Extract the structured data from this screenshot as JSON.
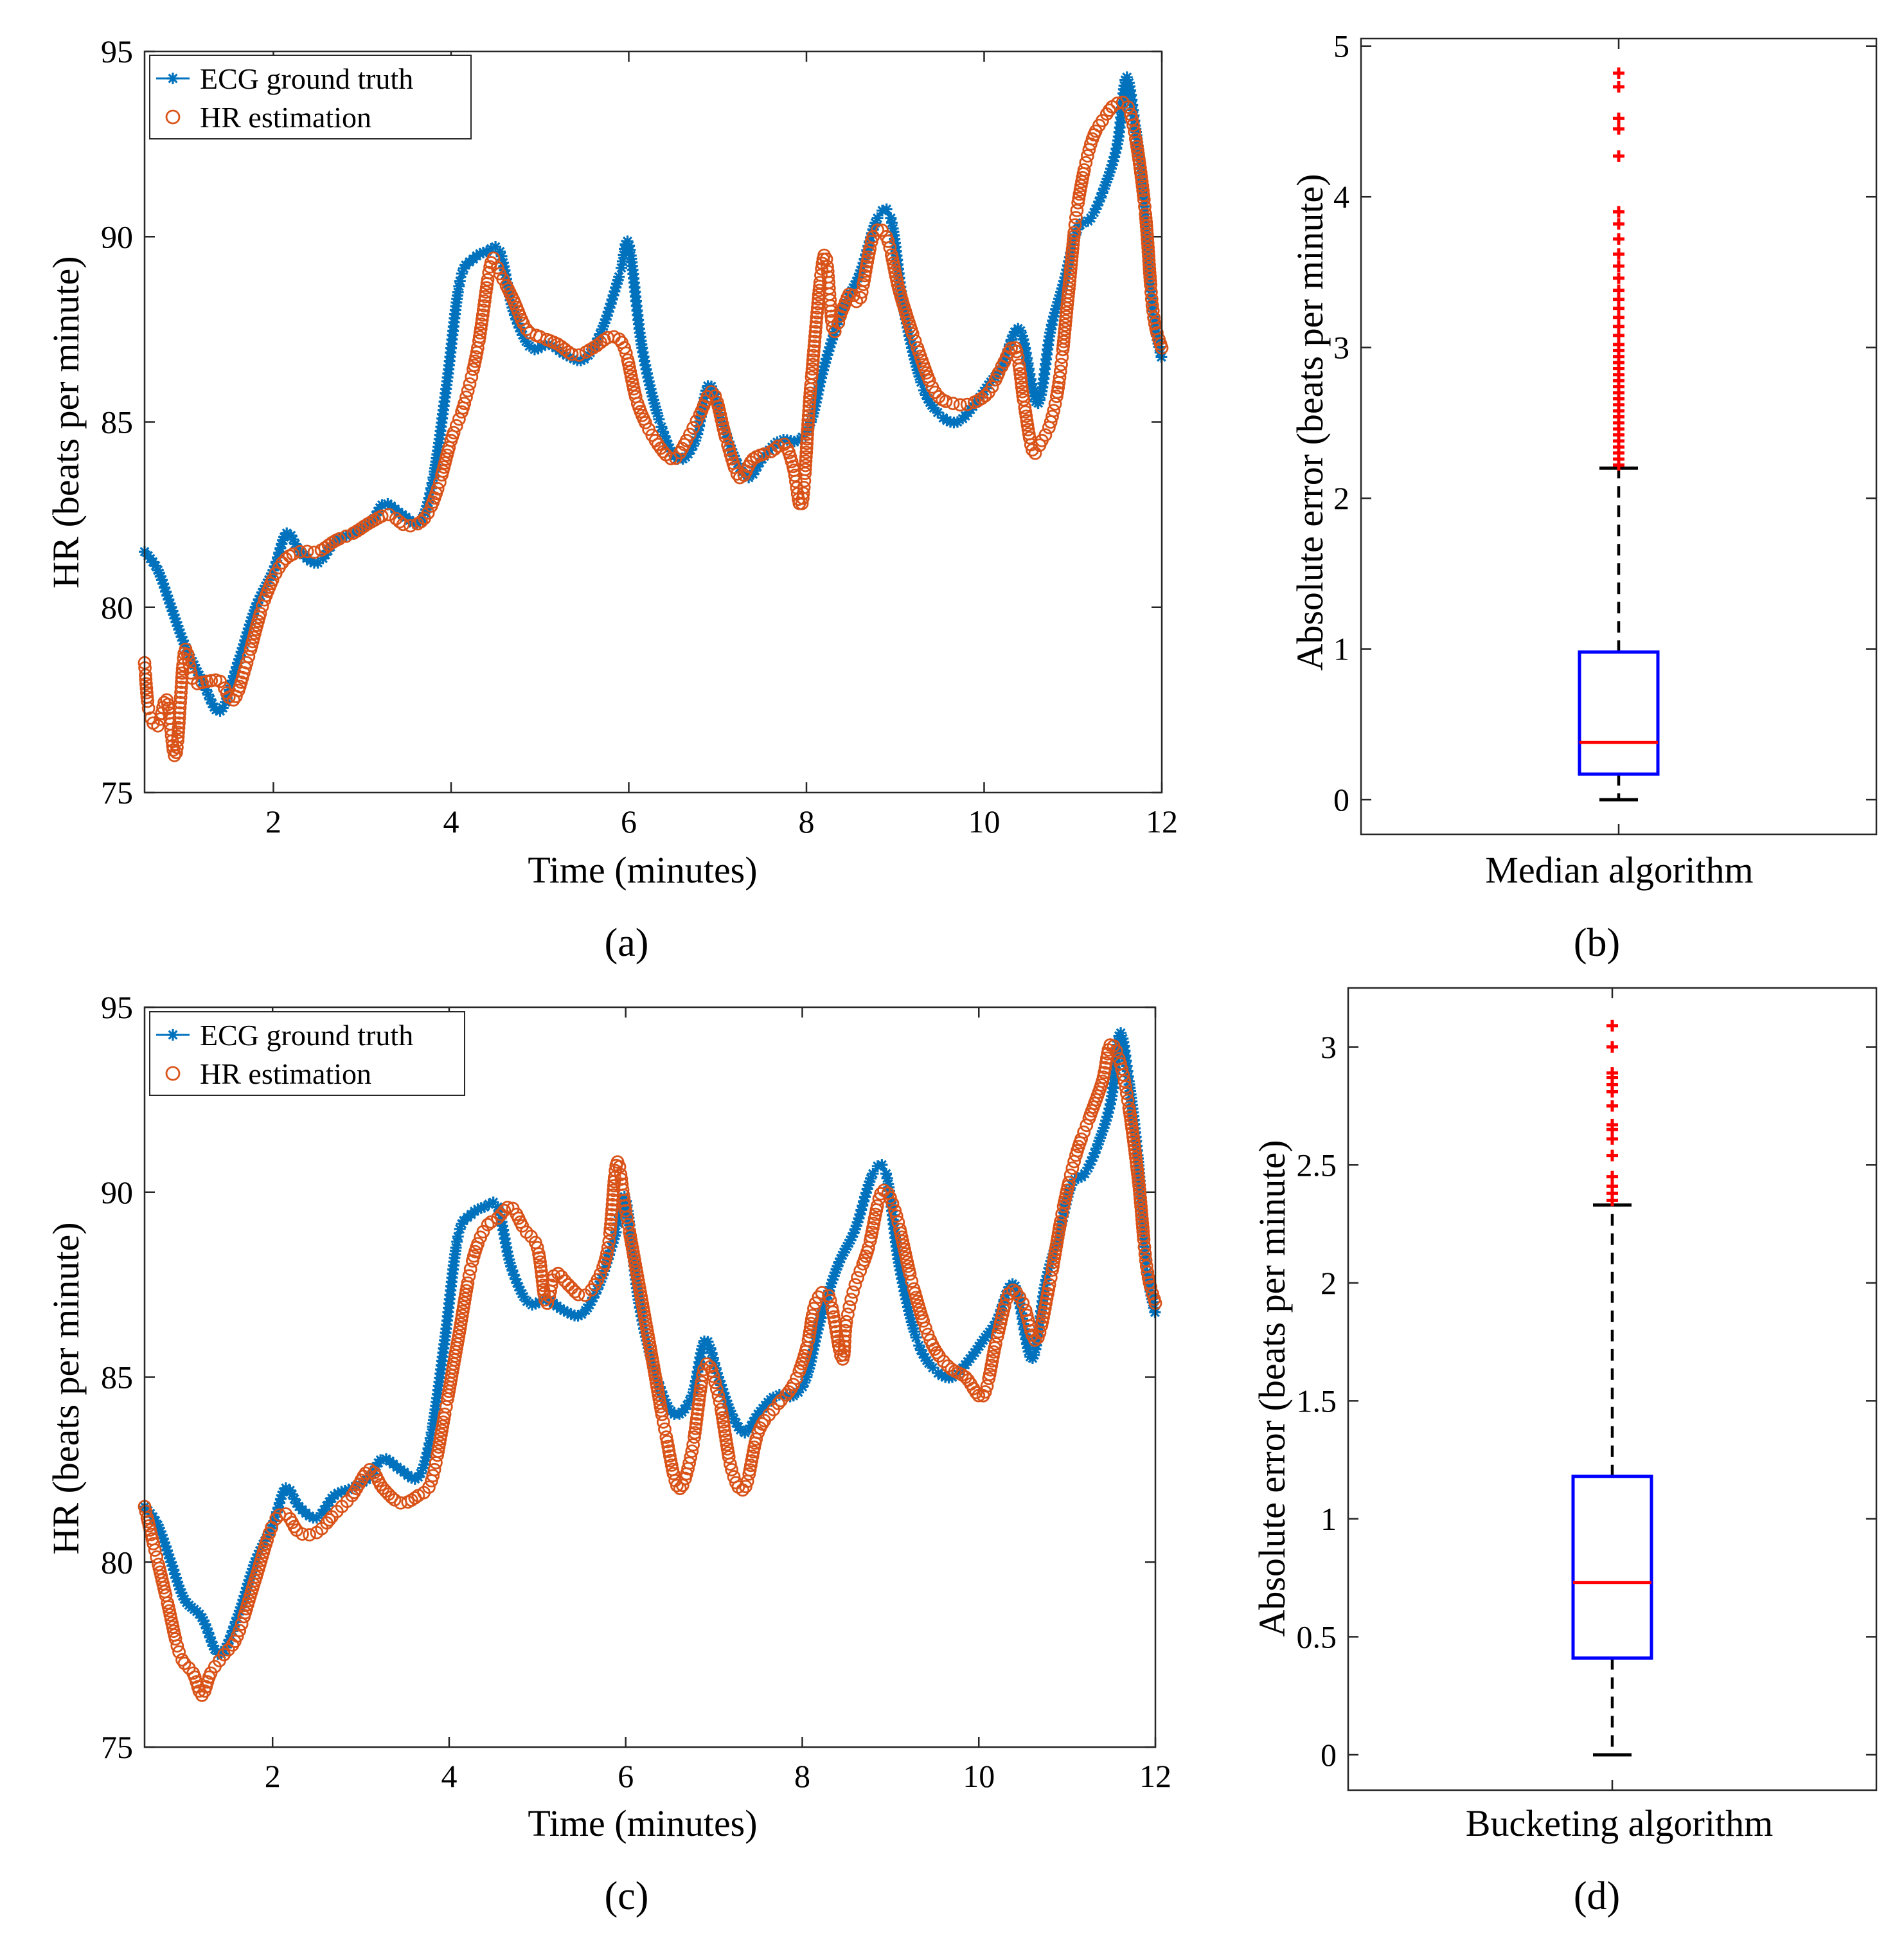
{
  "figure": {
    "colors": {
      "ecg": "#0072BD",
      "est": "#D95319",
      "box": "#0000FF",
      "median": "#FF0000",
      "outlier": "#FF0000",
      "whisker": "#000000"
    }
  },
  "chart_data": [
    {
      "id": "a",
      "type": "line",
      "panel_label": "(a)",
      "xlabel": "Time (minutes)",
      "ylabel": "HR (beats per minute)",
      "xlim": [
        0.55,
        12
      ],
      "ylim": [
        75,
        95
      ],
      "xticks": [
        2,
        4,
        6,
        8,
        10,
        12
      ],
      "yticks": [
        75,
        80,
        85,
        90,
        95
      ],
      "legend": [
        "ECG ground truth",
        "HR estimation"
      ],
      "legend_position": "top-left",
      "series": [
        {
          "name": "ECG ground truth",
          "marker": "asterisk",
          "x": [
            0.55,
            0.7,
            0.85,
            1.0,
            1.2,
            1.4,
            1.6,
            1.8,
            2.0,
            2.15,
            2.3,
            2.5,
            2.7,
            2.9,
            3.1,
            3.25,
            3.45,
            3.65,
            3.8,
            3.95,
            4.1,
            4.25,
            4.4,
            4.55,
            4.7,
            4.9,
            5.1,
            5.3,
            5.5,
            5.7,
            5.9,
            6.0,
            6.15,
            6.35,
            6.55,
            6.75,
            6.9,
            7.05,
            7.2,
            7.35,
            7.5,
            7.7,
            7.9,
            8.05,
            8.2,
            8.4,
            8.6,
            8.8,
            8.95,
            9.1,
            9.3,
            9.5,
            9.7,
            9.9,
            10.05,
            10.2,
            10.4,
            10.6,
            10.75,
            10.9,
            11.05,
            11.2,
            11.35,
            11.5,
            11.6,
            11.7,
            11.8,
            11.9,
            12.0
          ],
          "y": [
            81.5,
            81.0,
            80.0,
            79.0,
            78.0,
            77.2,
            78.5,
            80.0,
            81.0,
            82.0,
            81.5,
            81.2,
            81.8,
            82.0,
            82.3,
            82.8,
            82.5,
            82.3,
            83.5,
            86.0,
            88.8,
            89.4,
            89.6,
            89.6,
            88.0,
            87.0,
            87.1,
            86.8,
            86.7,
            87.5,
            89.0,
            89.8,
            87.0,
            85.0,
            84.0,
            84.5,
            86.0,
            85.0,
            84.0,
            83.5,
            84.0,
            84.5,
            84.5,
            85.0,
            86.5,
            88.0,
            89.0,
            90.5,
            90.5,
            88.0,
            86.0,
            85.2,
            85.0,
            85.5,
            86.0,
            86.5,
            87.5,
            85.5,
            87.5,
            88.8,
            90.2,
            90.5,
            91.3,
            92.5,
            94.3,
            93.0,
            91.0,
            88.0,
            86.7
          ]
        },
        {
          "name": "HR estimation",
          "marker": "circle",
          "x": [
            0.55,
            0.6,
            0.7,
            0.8,
            0.9,
            1.0,
            1.1,
            1.25,
            1.4,
            1.55,
            1.7,
            1.9,
            2.1,
            2.3,
            2.5,
            2.7,
            2.9,
            3.1,
            3.3,
            3.5,
            3.7,
            3.85,
            4.0,
            4.15,
            4.3,
            4.45,
            4.55,
            4.7,
            4.85,
            5.0,
            5.2,
            5.4,
            5.6,
            5.8,
            5.95,
            6.1,
            6.3,
            6.5,
            6.65,
            6.8,
            6.95,
            7.1,
            7.25,
            7.4,
            7.6,
            7.75,
            7.85,
            7.95,
            8.05,
            8.2,
            8.3,
            8.4,
            8.5,
            8.6,
            8.75,
            8.9,
            9.05,
            9.25,
            9.45,
            9.65,
            9.85,
            10.05,
            10.2,
            10.35,
            10.45,
            10.55,
            10.65,
            10.75,
            10.85,
            10.95,
            11.05,
            11.2,
            11.35,
            11.5,
            11.65,
            11.8,
            11.9,
            12.0
          ],
          "y": [
            78.5,
            77.2,
            76.8,
            77.5,
            76.0,
            78.8,
            78.0,
            78.0,
            78.0,
            77.5,
            78.5,
            80.2,
            81.2,
            81.5,
            81.5,
            81.8,
            82.0,
            82.3,
            82.5,
            82.2,
            82.4,
            83.2,
            84.5,
            85.5,
            87.0,
            89.3,
            89.0,
            88.3,
            87.5,
            87.3,
            87.1,
            86.8,
            87.0,
            87.3,
            87.0,
            85.5,
            84.5,
            84.0,
            84.5,
            85.2,
            85.8,
            84.5,
            83.5,
            84.0,
            84.2,
            84.4,
            83.8,
            82.8,
            86.0,
            89.5,
            87.5,
            88.0,
            88.5,
            88.3,
            90.0,
            90.0,
            88.5,
            87.0,
            85.8,
            85.5,
            85.5,
            85.8,
            86.5,
            87.0,
            85.5,
            84.2,
            84.5,
            85.0,
            86.2,
            88.5,
            90.8,
            92.5,
            93.2,
            93.6,
            93.3,
            91.0,
            88.0,
            87.0
          ]
        }
      ]
    },
    {
      "id": "b",
      "type": "box",
      "panel_label": "(b)",
      "xlabel": "Median algorithm",
      "ylabel": "Absolute error (beats per minute)",
      "ylim": [
        -0.23,
        5.05
      ],
      "yticks": [
        0,
        1,
        2,
        3,
        4,
        5
      ],
      "box": {
        "min": 0,
        "q1": 0.17,
        "median": 0.38,
        "q3": 0.98,
        "whisker_high": 2.2
      },
      "outliers": [
        2.22,
        2.26,
        2.3,
        2.34,
        2.38,
        2.42,
        2.46,
        2.5,
        2.54,
        2.58,
        2.62,
        2.66,
        2.7,
        2.74,
        2.78,
        2.82,
        2.86,
        2.9,
        2.94,
        2.98,
        3.02,
        3.08,
        3.14,
        3.2,
        3.26,
        3.32,
        3.38,
        3.46,
        3.54,
        3.62,
        3.72,
        3.82,
        3.9,
        4.27,
        4.45,
        4.52,
        4.73,
        4.82
      ]
    },
    {
      "id": "c",
      "type": "line",
      "panel_label": "(c)",
      "xlabel": "Time (minutes)",
      "ylabel": "HR (beats per minute)",
      "xlim": [
        0.55,
        12
      ],
      "ylim": [
        75,
        95
      ],
      "xticks": [
        2,
        4,
        6,
        8,
        10,
        12
      ],
      "yticks": [
        75,
        80,
        85,
        90,
        95
      ],
      "legend": [
        "ECG ground truth",
        "HR estimation"
      ],
      "legend_position": "top-left",
      "series": [
        {
          "name": "ECG ground truth",
          "marker": "asterisk",
          "x": [
            0.55,
            0.7,
            0.85,
            1.0,
            1.2,
            1.4,
            1.6,
            1.8,
            2.0,
            2.15,
            2.3,
            2.5,
            2.7,
            2.9,
            3.1,
            3.25,
            3.45,
            3.65,
            3.8,
            3.95,
            4.1,
            4.25,
            4.4,
            4.55,
            4.7,
            4.9,
            5.1,
            5.3,
            5.5,
            5.7,
            5.9,
            6.0,
            6.15,
            6.35,
            6.55,
            6.75,
            6.9,
            7.05,
            7.2,
            7.35,
            7.5,
            7.7,
            7.9,
            8.05,
            8.2,
            8.4,
            8.6,
            8.8,
            8.95,
            9.1,
            9.3,
            9.5,
            9.7,
            9.9,
            10.05,
            10.2,
            10.4,
            10.6,
            10.75,
            10.9,
            11.05,
            11.2,
            11.35,
            11.5,
            11.6,
            11.7,
            11.8,
            11.9,
            12.0
          ],
          "y": [
            81.5,
            81.0,
            80.0,
            79.0,
            78.5,
            77.5,
            78.5,
            80.0,
            81.0,
            82.0,
            81.5,
            81.2,
            81.8,
            82.0,
            82.3,
            82.8,
            82.5,
            82.3,
            83.5,
            86.0,
            88.8,
            89.4,
            89.6,
            89.6,
            88.0,
            87.0,
            87.1,
            86.8,
            86.7,
            87.5,
            89.0,
            89.8,
            87.0,
            85.0,
            84.0,
            84.5,
            86.0,
            85.0,
            84.0,
            83.5,
            84.0,
            84.5,
            84.5,
            85.0,
            86.5,
            88.0,
            89.0,
            90.5,
            90.5,
            88.0,
            86.0,
            85.2,
            85.0,
            85.5,
            86.0,
            86.5,
            87.5,
            85.5,
            87.5,
            88.8,
            90.2,
            90.5,
            91.3,
            92.5,
            94.3,
            93.0,
            91.0,
            88.0,
            86.7
          ]
        },
        {
          "name": "HR estimation",
          "marker": "circle",
          "x": [
            0.55,
            0.65,
            0.8,
            0.95,
            1.1,
            1.2,
            1.3,
            1.45,
            1.6,
            1.8,
            2.0,
            2.15,
            2.3,
            2.5,
            2.7,
            2.9,
            3.1,
            3.25,
            3.45,
            3.65,
            3.8,
            3.95,
            4.1,
            4.25,
            4.4,
            4.55,
            4.7,
            4.85,
            5.0,
            5.1,
            5.2,
            5.35,
            5.5,
            5.65,
            5.8,
            5.9,
            6.0,
            6.15,
            6.3,
            6.45,
            6.6,
            6.75,
            6.9,
            7.05,
            7.2,
            7.35,
            7.5,
            7.7,
            7.9,
            8.05,
            8.15,
            8.3,
            8.45,
            8.5,
            8.6,
            8.75,
            8.9,
            9.05,
            9.25,
            9.45,
            9.65,
            9.85,
            10.05,
            10.2,
            10.35,
            10.5,
            10.65,
            10.8,
            10.95,
            11.1,
            11.25,
            11.4,
            11.5,
            11.65,
            11.8,
            11.9,
            12.0
          ],
          "y": [
            81.5,
            80.5,
            79.0,
            77.5,
            77.0,
            76.4,
            77.0,
            77.5,
            78.0,
            79.5,
            81.0,
            81.3,
            80.8,
            80.8,
            81.3,
            81.8,
            82.5,
            82.0,
            81.6,
            81.8,
            82.2,
            84.0,
            86.0,
            88.0,
            89.0,
            89.3,
            89.6,
            89.0,
            88.5,
            87.0,
            87.8,
            87.5,
            87.2,
            87.5,
            88.5,
            90.8,
            89.5,
            87.5,
            85.5,
            83.5,
            82.0,
            83.0,
            85.3,
            84.5,
            82.5,
            82.0,
            83.5,
            84.2,
            84.8,
            85.8,
            87.0,
            87.2,
            85.5,
            86.5,
            87.5,
            88.5,
            90.0,
            89.5,
            87.5,
            86.0,
            85.3,
            85.0,
            84.5,
            86.0,
            87.3,
            87.0,
            86.0,
            87.5,
            89.5,
            91.0,
            92.0,
            93.0,
            94.0,
            93.0,
            90.5,
            88.0,
            87.0
          ]
        }
      ]
    },
    {
      "id": "d",
      "type": "box",
      "panel_label": "(d)",
      "xlabel": "Bucketing algorithm",
      "ylabel": "Absolute error (beats per minute)",
      "ylim": [
        -0.15,
        3.25
      ],
      "yticks": [
        0,
        0.5,
        1,
        1.5,
        2,
        2.5,
        3
      ],
      "box": {
        "min": 0,
        "q1": 0.41,
        "median": 0.73,
        "q3": 1.18,
        "whisker_high": 2.33
      },
      "outliers": [
        2.35,
        2.38,
        2.41,
        2.45,
        2.54,
        2.61,
        2.65,
        2.67,
        2.75,
        2.81,
        2.84,
        2.87,
        2.89,
        3.0,
        3.09
      ]
    }
  ]
}
